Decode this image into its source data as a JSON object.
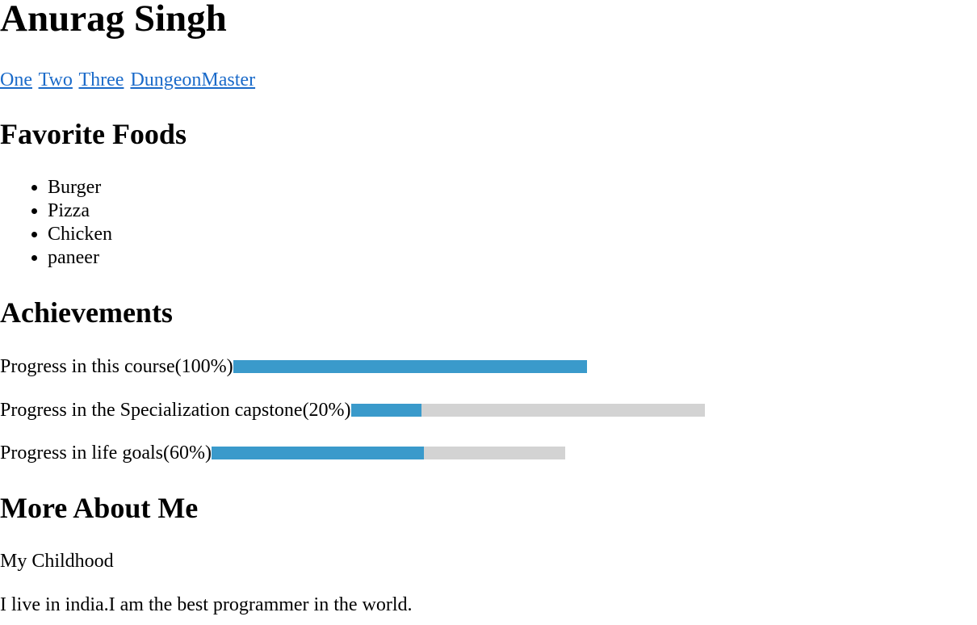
{
  "header": {
    "name": "Anurag Singh"
  },
  "nav": {
    "links": [
      {
        "label": "One"
      },
      {
        "label": "Two"
      },
      {
        "label": "Three"
      },
      {
        "label": "DungeonMaster"
      }
    ]
  },
  "foods": {
    "heading": "Favorite Foods",
    "items": [
      "Burger",
      "Pizza",
      "Chicken",
      "paneer"
    ]
  },
  "achievements": {
    "heading": "Achievements",
    "items": [
      {
        "label": "Progress in this course(100%)",
        "value": 1.0
      },
      {
        "label": "Progress in the Specialization capstone(20%)",
        "value": 0.2
      },
      {
        "label": "Progress in life goals(60%)",
        "value": 0.6
      }
    ],
    "colors": {
      "fill": "#3a9acb",
      "track": "#d3d3d3"
    }
  },
  "about": {
    "heading": "More About Me",
    "childhood": "My Childhood",
    "bio": "I live in india.I am the best programmer in the world."
  }
}
